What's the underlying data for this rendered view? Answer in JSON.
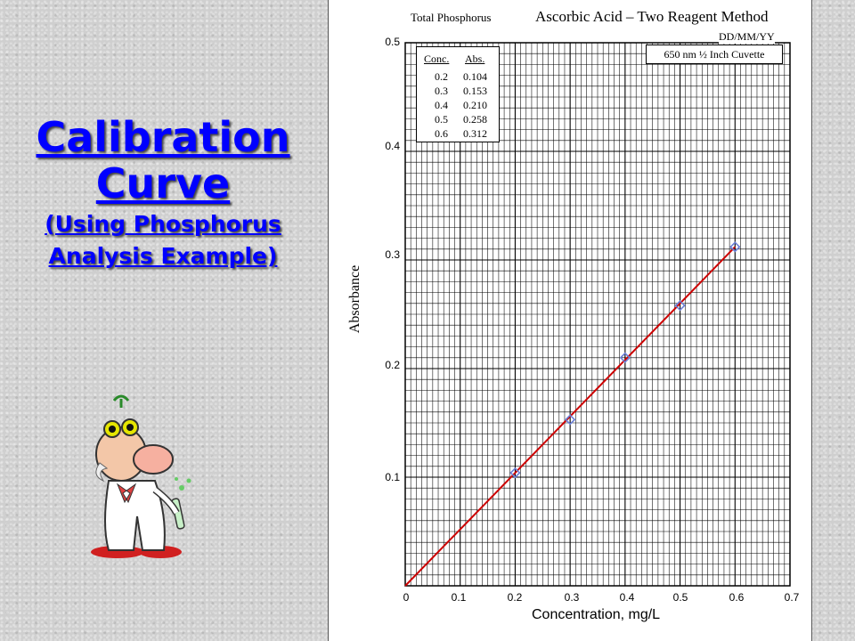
{
  "slide": {
    "title_line1": "Calibration",
    "title_line2": "Curve",
    "subtitle_line1": "(Using Phosphorus",
    "subtitle_line2": "Analysis Example)"
  },
  "chart_data": {
    "type": "line",
    "title_left": "Total Phosphorus",
    "title_right": "Ascorbic Acid – Two Reagent Method",
    "date_label": "DD/MM/YY",
    "info_box": "650 nm   ½ Inch Cuvette",
    "xlabel": "Concentration, mg/L",
    "ylabel": "Absorbance",
    "xlim": [
      0,
      0.7
    ],
    "ylim": [
      0,
      0.5
    ],
    "x_ticks": [
      "0",
      "0.1",
      "0.2",
      "0.3",
      "0.4",
      "0.5",
      "0.6",
      "0.7"
    ],
    "y_ticks": [
      "0.1",
      "0.2",
      "0.3",
      "0.4",
      "0.5"
    ],
    "grid": true,
    "table": {
      "headers": [
        "Conc.",
        "Abs."
      ],
      "rows": [
        [
          "0.2",
          "0.104"
        ],
        [
          "0.3",
          "0.153"
        ],
        [
          "0.4",
          "0.210"
        ],
        [
          "0.5",
          "0.258"
        ],
        [
          "0.6",
          "0.312"
        ]
      ]
    },
    "series": [
      {
        "x": [
          0.2,
          0.3,
          0.4,
          0.5,
          0.6
        ],
        "y": [
          0.104,
          0.153,
          0.21,
          0.258,
          0.312
        ],
        "marker": "diamond",
        "color": "#6a7fd6"
      }
    ],
    "fit_line": {
      "x": [
        0,
        0.6
      ],
      "y": [
        0,
        0.312
      ],
      "color": "#cc0000"
    }
  }
}
